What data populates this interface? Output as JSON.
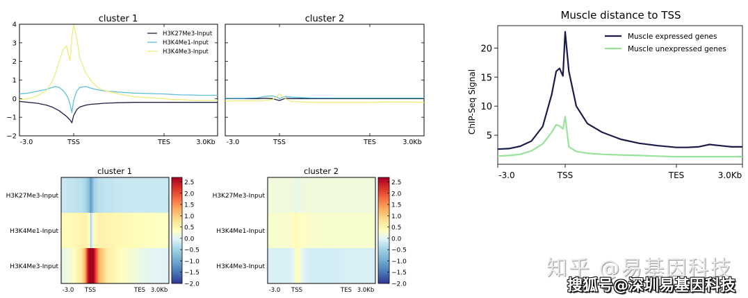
{
  "chart_data": [
    {
      "id": "profile_cluster1",
      "type": "line",
      "title": "cluster 1",
      "xlabel": "",
      "ylabel": "",
      "x_ticks": [
        "-3.0",
        "TSS",
        "TES",
        "3.0Kb"
      ],
      "y_ticks": [
        -2,
        -1,
        0,
        1,
        2,
        3,
        4
      ],
      "ylim": [
        -2,
        4
      ],
      "grid": false,
      "legend_position": "upper right",
      "x": [
        -3.0,
        -2.5,
        -2.0,
        -1.5,
        -1.2,
        -1.0,
        -0.8,
        -0.6,
        -0.4,
        -0.3,
        -0.2,
        -0.1,
        0.0,
        0.1,
        0.2,
        0.4,
        0.6,
        0.8,
        1.0,
        1.5,
        2.0,
        3.0,
        3.5,
        4.0,
        4.5,
        5.0,
        5.5,
        6.0
      ],
      "series": [
        {
          "name": "H3K27Me3-Input",
          "color": "#1c1f45",
          "values": [
            -0.15,
            -0.2,
            -0.25,
            -0.35,
            -0.45,
            -0.55,
            -0.65,
            -0.8,
            -0.95,
            -1.05,
            -1.15,
            -1.3,
            -0.9,
            -0.6,
            -0.45,
            -0.35,
            -0.3,
            -0.28,
            -0.25,
            -0.22,
            -0.2,
            -0.2,
            -0.2,
            -0.2,
            -0.2,
            -0.2,
            -0.2,
            -0.2
          ]
        },
        {
          "name": "H3K4Me1-Input",
          "color": "#5bc0de",
          "values": [
            0.25,
            0.3,
            0.4,
            0.5,
            0.6,
            0.65,
            0.6,
            0.45,
            0.2,
            0.0,
            -0.3,
            -0.75,
            -0.1,
            0.4,
            0.6,
            0.65,
            0.55,
            0.48,
            0.42,
            0.35,
            0.3,
            0.25,
            0.22,
            0.2,
            0.2,
            0.18,
            0.18,
            0.18
          ]
        },
        {
          "name": "H3K4Me3-Input",
          "color": "#ecec7a",
          "values": [
            -0.05,
            0.0,
            0.15,
            0.45,
            0.9,
            1.4,
            2.0,
            2.6,
            2.85,
            2.4,
            2.05,
            3.3,
            3.95,
            3.3,
            2.2,
            1.4,
            0.9,
            0.6,
            0.45,
            0.25,
            0.1,
            0.0,
            -0.05,
            -0.05,
            -0.08,
            -0.1,
            -0.1,
            -0.1
          ]
        }
      ]
    },
    {
      "id": "profile_cluster2",
      "type": "line",
      "title": "cluster 2",
      "x_ticks": [
        "-3.0",
        "TSS",
        "TES",
        "3.0Kb"
      ],
      "ylim": [
        -2,
        4
      ],
      "grid": false,
      "x": [
        -3.0,
        -2.0,
        -1.2,
        -0.8,
        -0.4,
        -0.2,
        0.0,
        0.2,
        0.4,
        1.0,
        2.0,
        3.0,
        4.0,
        5.0,
        6.0
      ],
      "series": [
        {
          "name": "H3K27Me3-Input",
          "color": "#1c1f45",
          "values": [
            0.0,
            0.0,
            0.0,
            0.02,
            0.0,
            -0.05,
            -0.1,
            0.02,
            0.0,
            0.0,
            0.0,
            0.0,
            0.0,
            0.0,
            0.0
          ]
        },
        {
          "name": "H3K4Me1-Input",
          "color": "#5bc0de",
          "values": [
            0.02,
            0.02,
            0.05,
            0.12,
            0.15,
            0.1,
            0.0,
            0.12,
            0.08,
            0.04,
            0.03,
            0.03,
            0.03,
            0.03,
            0.03
          ]
        },
        {
          "name": "H3K4Me3-Input",
          "color": "#ecec7a",
          "values": [
            -0.12,
            -0.12,
            -0.12,
            -0.1,
            -0.05,
            0.05,
            0.25,
            0.0,
            -0.15,
            -0.2,
            -0.2,
            -0.2,
            -0.18,
            -0.18,
            -0.2
          ]
        }
      ]
    },
    {
      "id": "heatmap_cluster1",
      "type": "heatmap",
      "title": "cluster 1",
      "rows": [
        "H3K27Me3-Input",
        "H3K4Me1-Input",
        "H3K4Me3-Input"
      ],
      "x_ticks": [
        "-3.0",
        "TSS",
        "TES",
        "3.0Kb"
      ],
      "colorbar_ticks": [
        "2.5",
        "2.0",
        "1.5",
        "1.0",
        "0.5",
        "0.0",
        "−0.5",
        "−1.0",
        "−1.5",
        "−2.0"
      ],
      "colorbar_range": [
        -2.0,
        2.7
      ],
      "colormap": "RdYlBu_r",
      "x": [
        -3.0,
        -2.0,
        -1.0,
        -0.6,
        -0.3,
        -0.1,
        0.0,
        0.2,
        0.5,
        1.0,
        2.0,
        3.0,
        4.0,
        6.0
      ],
      "values": [
        [
          -0.3,
          -0.35,
          -0.4,
          -0.5,
          -0.7,
          -0.9,
          -1.2,
          -0.6,
          -0.4,
          -0.35,
          -0.3,
          -0.3,
          -0.3,
          -0.3
        ],
        [
          0.3,
          0.35,
          0.45,
          0.5,
          0.4,
          0.1,
          -0.6,
          0.3,
          0.5,
          0.45,
          0.35,
          0.3,
          0.25,
          0.2
        ],
        [
          -0.05,
          0.1,
          0.6,
          1.2,
          2.4,
          2.8,
          3.0,
          2.6,
          1.3,
          0.6,
          0.2,
          0.0,
          -0.1,
          -0.15
        ]
      ]
    },
    {
      "id": "heatmap_cluster2",
      "type": "heatmap",
      "title": "cluster 2",
      "rows": [
        "H3K27Me3-Input",
        "H3K4Me1-Input",
        "H3K4Me3-Input"
      ],
      "x_ticks": [
        "-3.0",
        "TSS",
        "TES",
        "3.0Kb"
      ],
      "colorbar_ticks": [
        "2.5",
        "2.0",
        "1.5",
        "1.0",
        "0.5",
        "0.0",
        "−0.5",
        "−1.0",
        "−1.5",
        "−2.0"
      ],
      "colorbar_range": [
        -2.0,
        2.7
      ],
      "colormap": "RdYlBu_r",
      "x": [
        -3.0,
        -2.0,
        -1.0,
        -0.5,
        -0.2,
        0.0,
        0.2,
        0.5,
        1.0,
        2.0,
        3.0,
        4.0,
        6.0
      ],
      "values": [
        [
          0.05,
          0.05,
          0.05,
          0.05,
          0.0,
          -0.05,
          0.0,
          0.05,
          0.05,
          0.05,
          0.05,
          0.05,
          0.05
        ],
        [
          0.15,
          0.15,
          0.15,
          0.2,
          0.35,
          0.3,
          0.25,
          0.2,
          0.15,
          0.15,
          0.15,
          0.15,
          0.15
        ],
        [
          -0.2,
          -0.2,
          -0.2,
          -0.15,
          0.1,
          0.4,
          0.05,
          -0.2,
          -0.25,
          -0.25,
          -0.2,
          -0.2,
          -0.2
        ]
      ]
    },
    {
      "id": "muscle_tss",
      "type": "line",
      "title": "Muscle distance to TSS",
      "xlabel": "",
      "ylabel": "ChIP-Seq Signal",
      "x_ticks": [
        "-3.0",
        "TSS",
        "TES",
        "3.0Kb"
      ],
      "y_ticks": [
        5,
        10,
        15,
        20
      ],
      "ylim": [
        0,
        23.5
      ],
      "grid": false,
      "legend_position": "upper right",
      "x": [
        -3.0,
        -2.5,
        -2.0,
        -1.5,
        -1.0,
        -0.6,
        -0.4,
        -0.25,
        -0.1,
        0.0,
        0.1,
        0.3,
        0.6,
        1.0,
        1.5,
        2.0,
        2.5,
        3.0,
        3.5,
        4.0,
        4.5,
        5.0,
        5.5,
        6.0
      ],
      "series": [
        {
          "name": "Muscle expressed genes",
          "color": "#1a1a4a",
          "values": [
            2.6,
            2.7,
            3.1,
            4.0,
            6.5,
            12.0,
            16.0,
            16.5,
            15.2,
            22.8,
            16.0,
            10.0,
            7.0,
            5.5,
            4.3,
            3.6,
            3.2,
            2.9,
            2.9,
            3.0,
            3.4,
            3.2,
            3.0,
            3.0
          ]
        },
        {
          "name": "Muscle unexpressed genes",
          "color": "#98e39a",
          "values": [
            1.4,
            1.5,
            1.7,
            2.3,
            3.5,
            5.5,
            6.8,
            6.6,
            6.1,
            8.2,
            3.0,
            2.2,
            1.9,
            1.7,
            1.6,
            1.5,
            1.4,
            1.3,
            1.3,
            1.3,
            1.3,
            1.3,
            1.3,
            1.3
          ]
        }
      ]
    }
  ],
  "labels": {
    "top_left_title": "cluster 1",
    "top_mid_title": "cluster 2",
    "heat1_title": "cluster 1",
    "heat2_title": "cluster 2",
    "right_title": "Muscle distance to TSS",
    "right_ylabel": "ChIP-Seq Signal",
    "x_tick_start": "-3.0",
    "x_tick_tss": "TSS",
    "x_tick_tes": "TES",
    "x_tick_end": "3.0Kb",
    "legend_top": [
      "H3K27Me3-Input",
      "H3K4Me1-Input",
      "H3K4Me3-Input"
    ],
    "legend_right": [
      "Muscle expressed genes",
      "Muscle unexpressed genes"
    ],
    "heat_rows": [
      "H3K27Me3-Input",
      "H3K4Me1-Input",
      "H3K4Me3-Input"
    ],
    "top_y_ticks": [
      "4",
      "3",
      "2",
      "1",
      "0",
      "−1",
      "−2"
    ],
    "right_y_ticks": [
      "20",
      "15",
      "10",
      "5"
    ],
    "colorbar_ticks": [
      "2.5",
      "2.0",
      "1.5",
      "1.0",
      "0.5",
      "0.0",
      "−0.5",
      "−1.0",
      "−1.5",
      "−2.0"
    ]
  },
  "watermark": {
    "line1": "知乎 @易基因科技",
    "line2": "搜狐号@深圳易基因科技"
  }
}
